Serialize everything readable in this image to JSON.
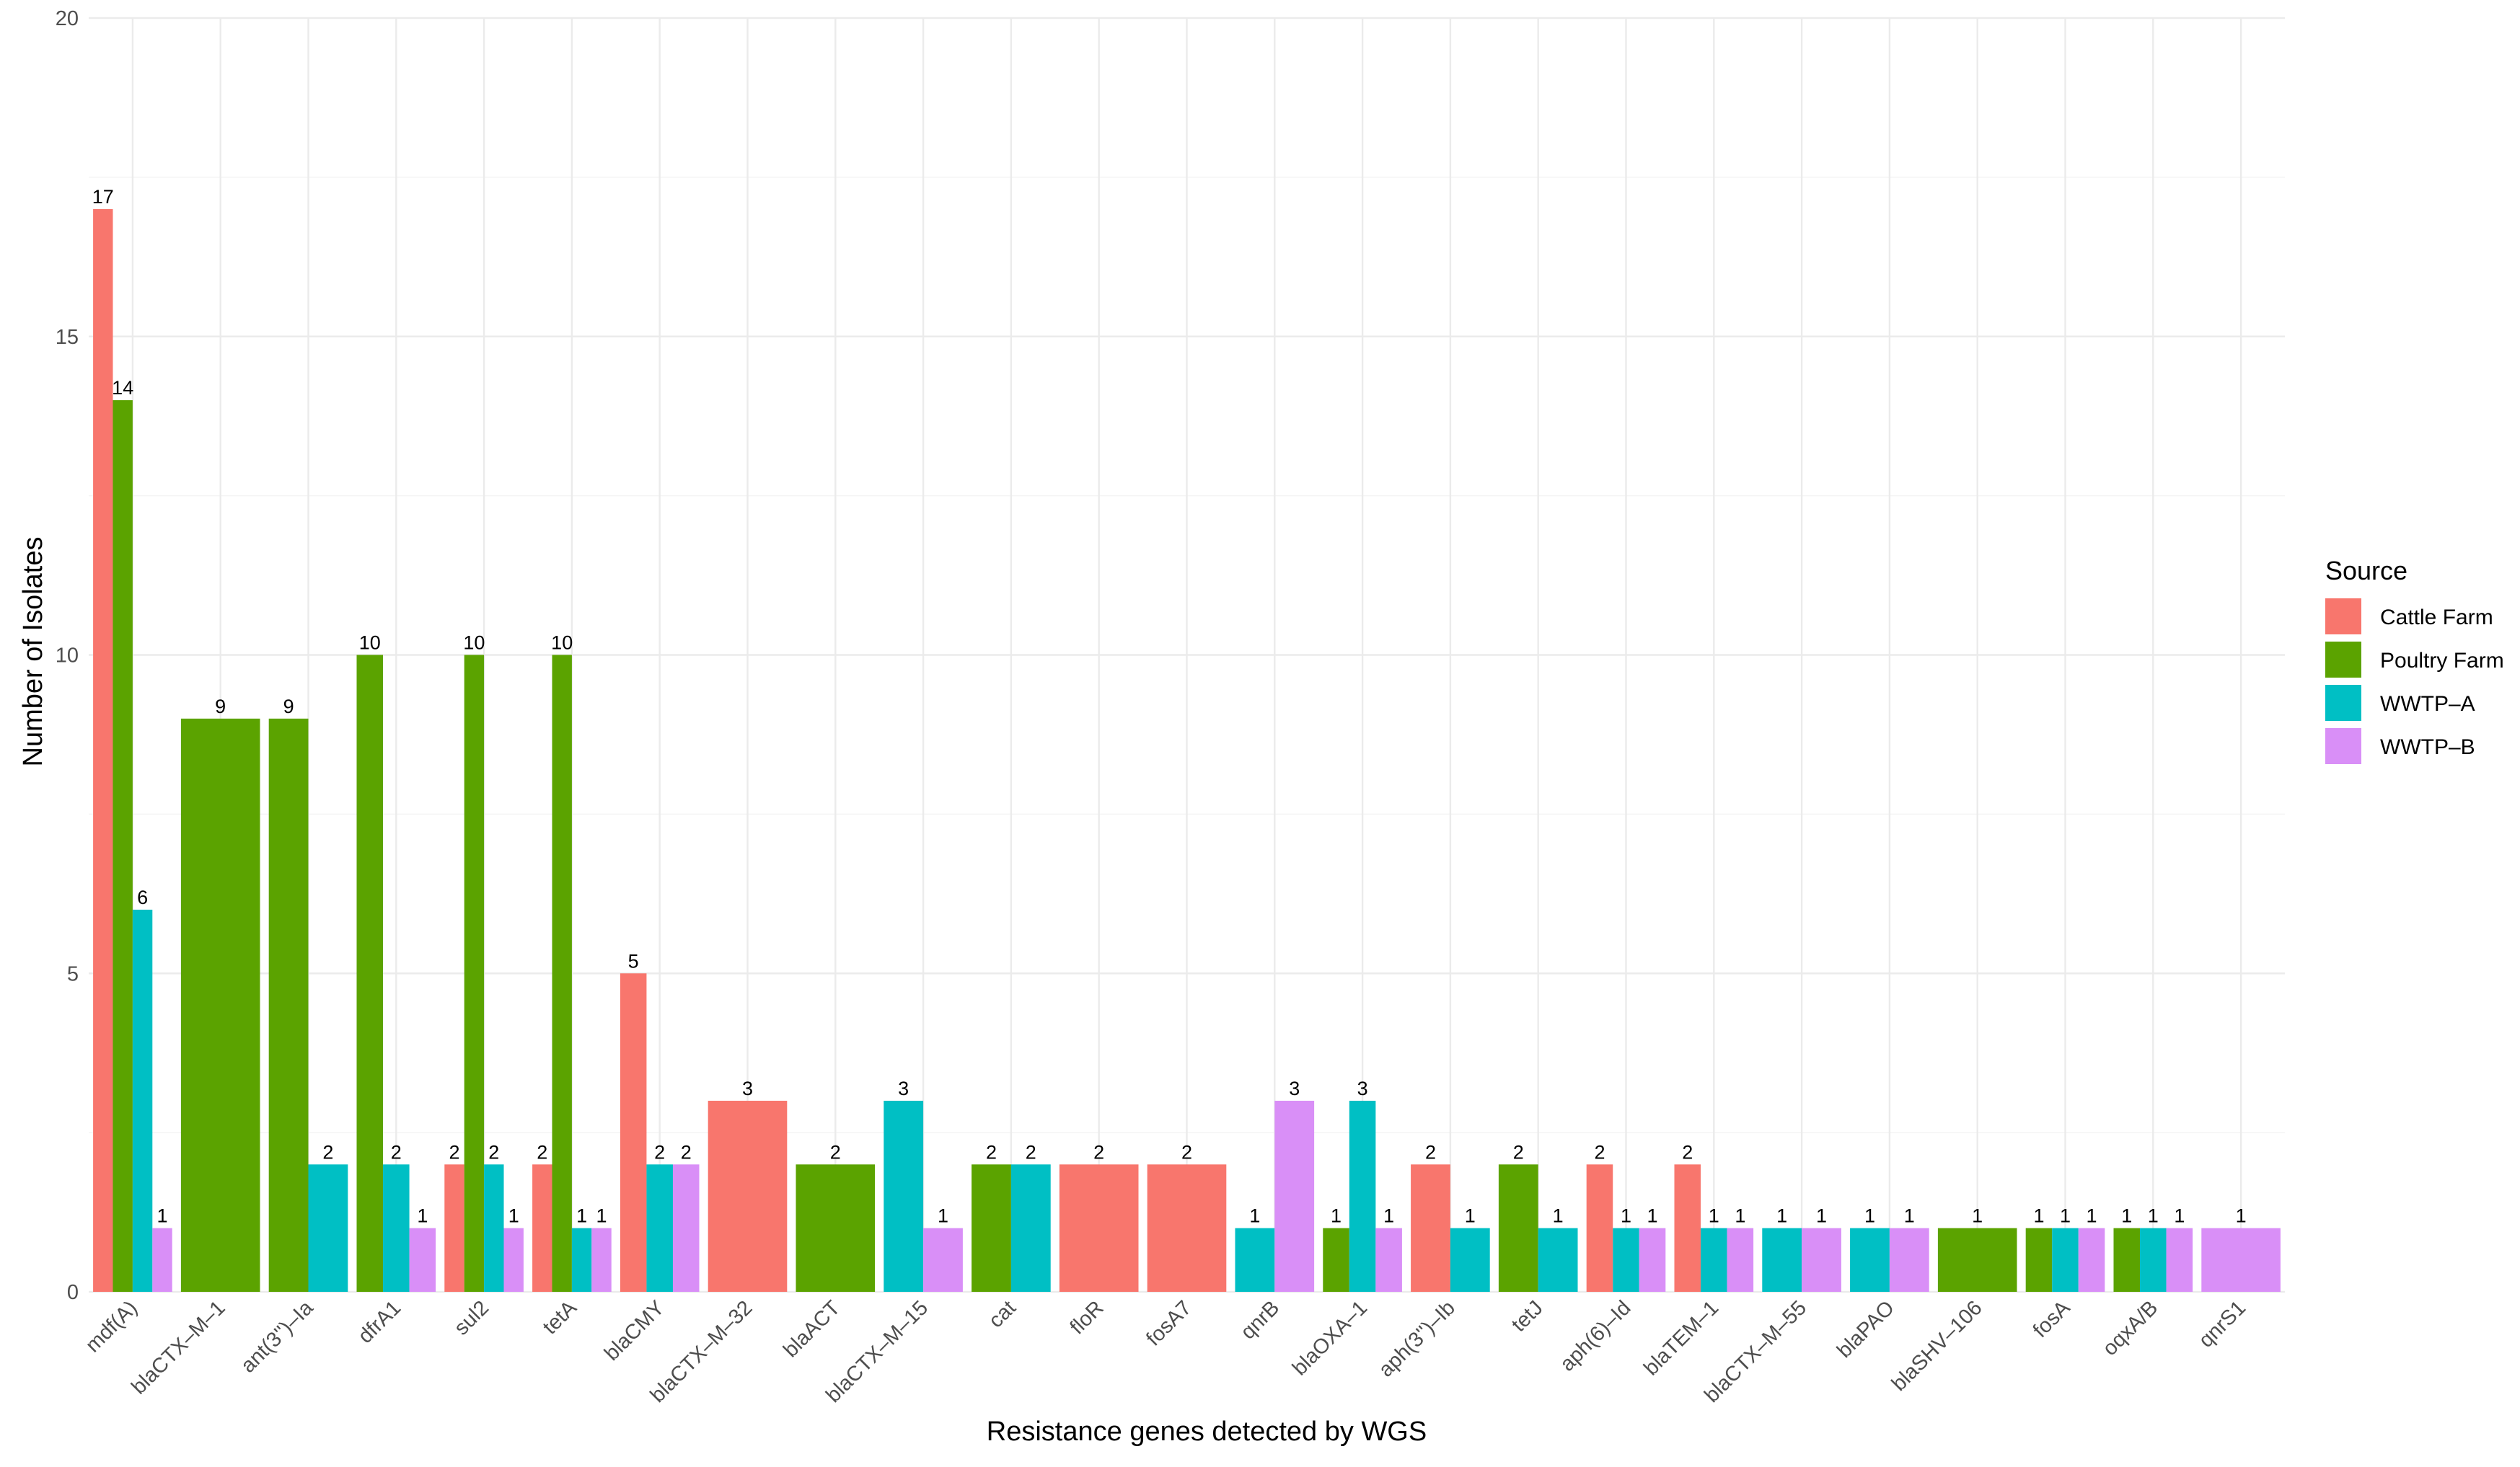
{
  "chart_data": {
    "type": "bar",
    "xlabel": "Resistance genes detected by WGS",
    "ylabel": "Number of Isolates",
    "ylim": [
      0,
      20
    ],
    "yticks": [
      0,
      5,
      10,
      15,
      20
    ],
    "grid": true,
    "legend": {
      "title": "Source",
      "position": "right",
      "entries": [
        "Cattle Farm",
        "Poultry Farm",
        "WWTP–A",
        "WWTP–B"
      ]
    },
    "colors": {
      "Cattle Farm": "#F8766D",
      "Poultry Farm": "#5BA300",
      "WWTP–A": "#00BFC4",
      "WWTP–B": "#D98FF7"
    },
    "categories": [
      "mdf(A)",
      "blaCTX–M–1",
      "ant(3'')–Ia",
      "dfrA1",
      "sul2",
      "tetA",
      "blaCMY",
      "blaCTX–M–32",
      "blaACT",
      "blaCTX–M–15",
      "cat",
      "floR",
      "fosA7",
      "qnrB",
      "blaOXA–1",
      "aph(3'')–Ib",
      "tetJ",
      "aph(6)–Id",
      "blaTEM–1",
      "blaCTX–M–55",
      "blaPAO",
      "blaSHV–106",
      "fosA",
      "oqxA/B",
      "qnrS1"
    ],
    "bars": [
      [
        {
          "source": "Cattle Farm",
          "value": 17
        },
        {
          "source": "Poultry Farm",
          "value": 14
        },
        {
          "source": "WWTP–A",
          "value": 6
        },
        {
          "source": "WWTP–B",
          "value": 1
        }
      ],
      [
        {
          "source": "Poultry Farm",
          "value": 9
        }
      ],
      [
        {
          "source": "Poultry Farm",
          "value": 9
        },
        {
          "source": "WWTP–A",
          "value": 2
        }
      ],
      [
        {
          "source": "Poultry Farm",
          "value": 10
        },
        {
          "source": "WWTP–A",
          "value": 2
        },
        {
          "source": "WWTP–B",
          "value": 1
        }
      ],
      [
        {
          "source": "Cattle Farm",
          "value": 2
        },
        {
          "source": "Poultry Farm",
          "value": 10
        },
        {
          "source": "WWTP–A",
          "value": 2
        },
        {
          "source": "WWTP–B",
          "value": 1
        }
      ],
      [
        {
          "source": "Cattle Farm",
          "value": 2
        },
        {
          "source": "Poultry Farm",
          "value": 10
        },
        {
          "source": "WWTP–A",
          "value": 1
        },
        {
          "source": "WWTP–B",
          "value": 1
        }
      ],
      [
        {
          "source": "Cattle Farm",
          "value": 5
        },
        {
          "source": "WWTP–A",
          "value": 2
        },
        {
          "source": "WWTP–B",
          "value": 2
        }
      ],
      [
        {
          "source": "Cattle Farm",
          "value": 3
        }
      ],
      [
        {
          "source": "Poultry Farm",
          "value": 2
        }
      ],
      [
        {
          "source": "WWTP–A",
          "value": 3
        },
        {
          "source": "WWTP–B",
          "value": 1
        }
      ],
      [
        {
          "source": "Poultry Farm",
          "value": 2
        },
        {
          "source": "WWTP–A",
          "value": 2
        }
      ],
      [
        {
          "source": "Cattle Farm",
          "value": 2
        }
      ],
      [
        {
          "source": "Cattle Farm",
          "value": 2
        }
      ],
      [
        {
          "source": "WWTP–A",
          "value": 1
        },
        {
          "source": "WWTP–B",
          "value": 3
        }
      ],
      [
        {
          "source": "Poultry Farm",
          "value": 1
        },
        {
          "source": "WWTP–A",
          "value": 3
        },
        {
          "source": "WWTP–B",
          "value": 1
        }
      ],
      [
        {
          "source": "Cattle Farm",
          "value": 2
        },
        {
          "source": "WWTP–A",
          "value": 1
        }
      ],
      [
        {
          "source": "Poultry Farm",
          "value": 2
        },
        {
          "source": "WWTP–A",
          "value": 1
        }
      ],
      [
        {
          "source": "Cattle Farm",
          "value": 2
        },
        {
          "source": "WWTP–A",
          "value": 1
        },
        {
          "source": "WWTP–B",
          "value": 1
        }
      ],
      [
        {
          "source": "Cattle Farm",
          "value": 2
        },
        {
          "source": "WWTP–A",
          "value": 1
        },
        {
          "source": "WWTP–B",
          "value": 1
        }
      ],
      [
        {
          "source": "WWTP–A",
          "value": 1
        },
        {
          "source": "WWTP–B",
          "value": 1
        }
      ],
      [
        {
          "source": "WWTP–A",
          "value": 1
        },
        {
          "source": "WWTP–B",
          "value": 1
        }
      ],
      [
        {
          "source": "Poultry Farm",
          "value": 1
        }
      ],
      [
        {
          "source": "Poultry Farm",
          "value": 1
        },
        {
          "source": "WWTP–A",
          "value": 1
        },
        {
          "source": "WWTP–B",
          "value": 1
        }
      ],
      [
        {
          "source": "Poultry Farm",
          "value": 1
        },
        {
          "source": "WWTP–A",
          "value": 1
        },
        {
          "source": "WWTP–B",
          "value": 1
        }
      ],
      [
        {
          "source": "WWTP–B",
          "value": 1
        }
      ]
    ]
  }
}
